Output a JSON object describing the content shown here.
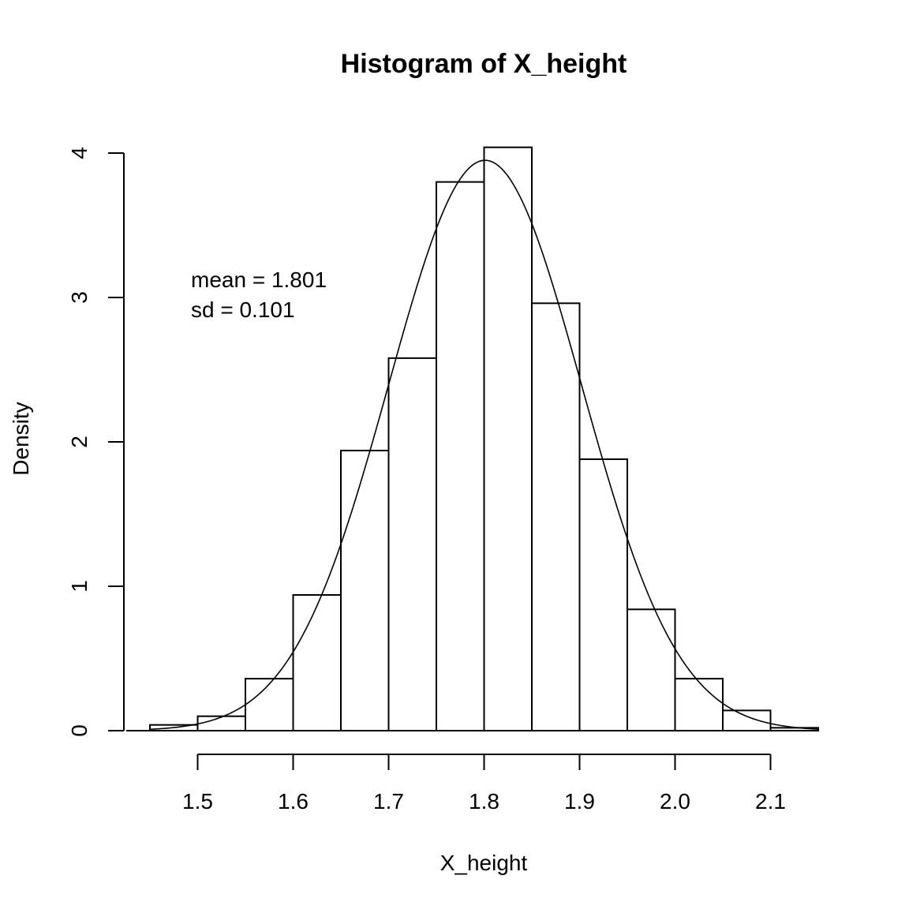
{
  "chart_data": {
    "type": "bar",
    "title": "Histogram of X_height",
    "xlabel": "X_height",
    "ylabel": "Density",
    "bin_edges": [
      1.45,
      1.5,
      1.55,
      1.6,
      1.65,
      1.7,
      1.75,
      1.8,
      1.85,
      1.9,
      1.95,
      2.0,
      2.05,
      2.1,
      2.15
    ],
    "values": [
      0.04,
      0.1,
      0.36,
      0.94,
      1.94,
      2.58,
      3.8,
      4.04,
      2.96,
      1.88,
      0.84,
      0.36,
      0.14,
      0.02
    ],
    "xlim": [
      1.45,
      2.15
    ],
    "ylim": [
      0,
      4
    ],
    "x_ticks": [
      "1.5",
      "1.6",
      "1.7",
      "1.8",
      "1.9",
      "2.0",
      "2.1"
    ],
    "y_ticks": [
      "0",
      "1",
      "2",
      "3",
      "4"
    ],
    "density_curve": {
      "mean": 1.801,
      "sd": 0.101
    },
    "annotations": [
      "mean = 1.801",
      "sd = 0.101"
    ],
    "grid": false
  }
}
